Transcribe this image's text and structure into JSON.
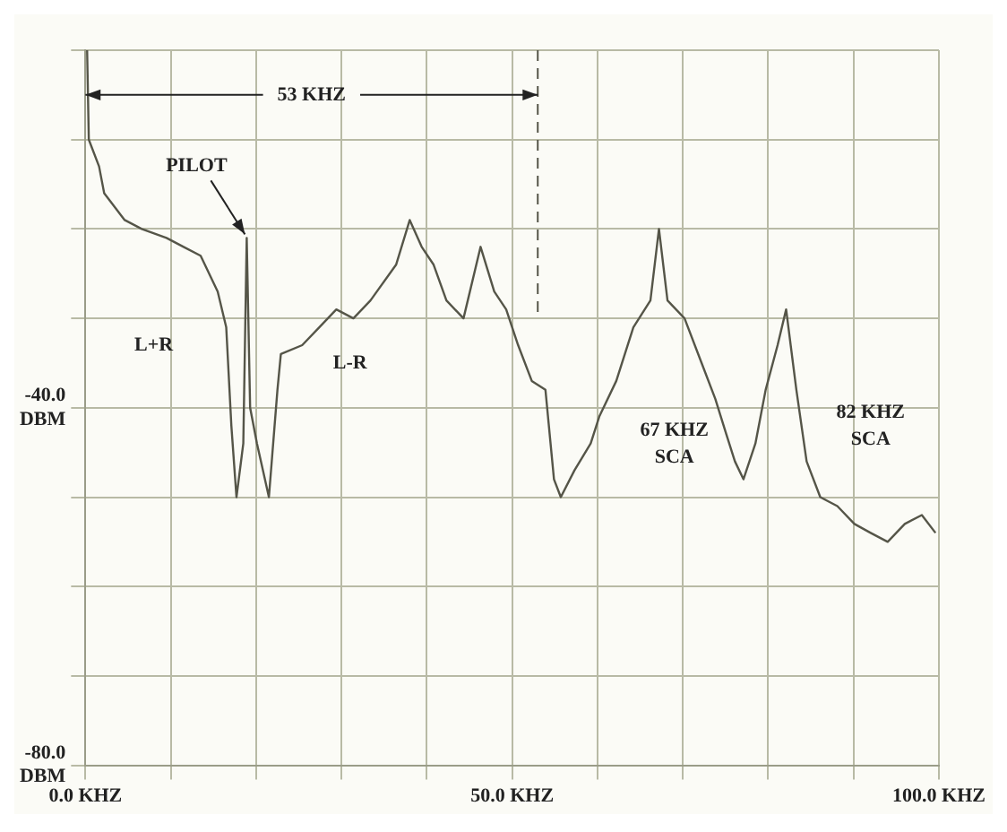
{
  "chart_data": {
    "type": "line",
    "x": [
      0.2,
      0.4,
      1.6,
      2.2,
      4.6,
      6.6,
      9.5,
      11.5,
      13.5,
      15.5,
      16.5,
      17.1,
      17.7,
      18.5,
      18.9,
      19.3,
      20.1,
      21.5,
      22.5,
      22.9,
      25.4,
      27.4,
      29.4,
      31.4,
      33.4,
      36.4,
      38.0,
      39.4,
      40.8,
      42.3,
      44.3,
      46.3,
      47.9,
      49.3,
      50.7,
      52.3,
      53.9,
      54.9,
      55.7,
      57.3,
      59.2,
      60.2,
      62.2,
      64.2,
      66.2,
      67.2,
      68.2,
      70.2,
      72.2,
      73.8,
      75.1,
      76.1,
      77.1,
      78.5,
      79.7,
      81.1,
      82.1,
      83.3,
      84.5,
      86.1,
      88.1,
      90.1,
      92.0,
      94.0,
      96.0,
      98.0,
      99.6
    ],
    "series": [
      {
        "color": "#555548",
        "values": [
          0,
          -10,
          -13,
          -16,
          -19,
          -20,
          -21,
          -22,
          -23,
          -27,
          -31,
          -42,
          -50,
          -44,
          -21,
          -40,
          -44,
          -50,
          -38,
          -34,
          -33,
          -31,
          -29,
          -30,
          -28,
          -24,
          -19,
          -22,
          -24,
          -28,
          -30,
          -22,
          -27,
          -29,
          -33,
          -37,
          -38,
          -48,
          -50,
          -47,
          -44,
          -41,
          -37,
          -31,
          -28,
          -20,
          -28,
          -30,
          -35,
          -39,
          -43,
          -46,
          -48,
          -44,
          -38,
          -33,
          -29,
          -38,
          -46,
          -50,
          -51,
          -53,
          -54,
          -55,
          -53,
          -52,
          -54
        ]
      }
    ],
    "xlim": [
      0,
      100
    ],
    "xticks": [
      {
        "value": 0,
        "label": "0.0 KHZ"
      },
      {
        "value": 10,
        "label": null
      },
      {
        "value": 20,
        "label": null
      },
      {
        "value": 30,
        "label": null
      },
      {
        "value": 40,
        "label": null
      },
      {
        "value": 50,
        "label": "50.0 KHZ"
      },
      {
        "value": 60,
        "label": null
      },
      {
        "value": 70,
        "label": null
      },
      {
        "value": 80,
        "label": null
      },
      {
        "value": 90,
        "label": null
      },
      {
        "value": 100,
        "label": "100.0 KHZ"
      }
    ],
    "ylim": [
      -80,
      0
    ],
    "yticks": [
      {
        "value": -80,
        "label": "-80.0 DBM"
      },
      {
        "value": -70,
        "label": null
      },
      {
        "value": -60,
        "label": null
      },
      {
        "value": -50,
        "label": null
      },
      {
        "value": -40,
        "label": "-40.0 DBM"
      },
      {
        "value": -30,
        "label": null
      },
      {
        "value": -20,
        "label": null
      },
      {
        "value": -10,
        "label": null
      },
      {
        "value": 0,
        "label": null
      }
    ],
    "grid": true,
    "marker": "none",
    "line_style": "solid",
    "ref_lines": [
      {
        "axis": "x",
        "value": 53,
        "line_style": "dashed",
        "color": "#555548"
      }
    ],
    "annotations": [
      {
        "text": "53 KHZ",
        "x": 53,
        "y": -5
      },
      {
        "text": "PILOT",
        "x": 18.9,
        "y": -21
      },
      "L+R",
      "L-R",
      "67 KHZ SCA",
      "82 KHZ SCA"
    ]
  }
}
